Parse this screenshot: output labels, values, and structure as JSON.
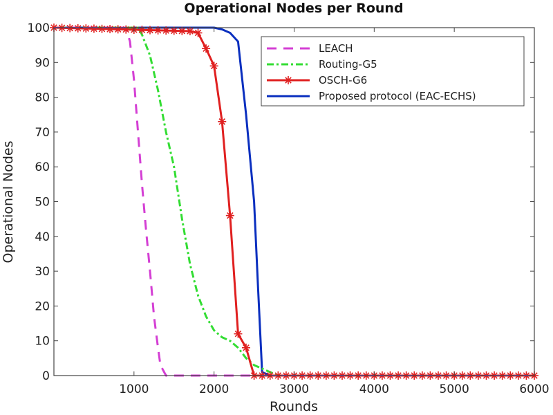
{
  "chart_data": {
    "type": "line",
    "title": "Operational Nodes per Round",
    "xlabel": "Rounds",
    "ylabel": "Operational Nodes",
    "xlim": [
      0,
      6000
    ],
    "ylim": [
      0,
      100
    ],
    "xticks": [
      1000,
      2000,
      3000,
      4000,
      5000,
      6000
    ],
    "yticks": [
      0,
      10,
      20,
      30,
      40,
      50,
      60,
      70,
      80,
      90,
      100
    ],
    "grid": false,
    "legend_position": "upper right",
    "series": [
      {
        "name": "LEACH",
        "color": "#d43fd4",
        "style": "dashed",
        "x": [
          0,
          900,
          950,
          1000,
          1050,
          1100,
          1150,
          1200,
          1250,
          1300,
          1330,
          1400,
          6000
        ],
        "y": [
          100,
          100,
          96,
          85,
          70,
          55,
          42,
          30,
          17,
          8,
          3,
          0,
          0
        ]
      },
      {
        "name": "Routing-G5",
        "color": "#33dd33",
        "style": "dashdot",
        "x": [
          0,
          1050,
          1100,
          1200,
          1300,
          1400,
          1500,
          1600,
          1700,
          1800,
          1900,
          2000,
          2100,
          2200,
          2300,
          2400,
          2500,
          2600,
          2700,
          2800,
          6000
        ],
        "y": [
          100,
          100,
          98,
          92,
          82,
          70,
          60,
          45,
          32,
          23,
          17,
          13,
          11,
          10,
          8,
          5,
          3,
          2,
          1,
          0,
          0
        ]
      },
      {
        "name": "OSCH-G6",
        "color": "#e02020",
        "style": "solid-star",
        "x": [
          0,
          1700,
          1800,
          1900,
          2000,
          2100,
          2200,
          2300,
          2400,
          2500,
          6000
        ],
        "y": [
          100,
          99,
          98.5,
          94,
          89,
          73,
          46,
          12,
          8,
          0,
          0
        ]
      },
      {
        "name": "Proposed protocol (EAC-ECHS)",
        "color": "#0a2fbf",
        "style": "solid",
        "x": [
          0,
          2000,
          2100,
          2200,
          2300,
          2400,
          2500,
          2550,
          2600,
          2700,
          6000
        ],
        "y": [
          100,
          100,
          99.5,
          98.5,
          96,
          75,
          50,
          25,
          1,
          0,
          0
        ]
      }
    ]
  }
}
